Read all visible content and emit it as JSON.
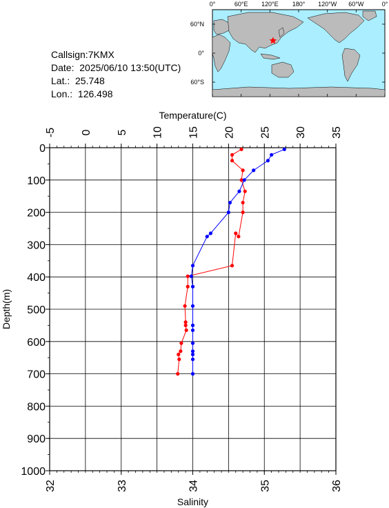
{
  "info": {
    "callsign": "Callsign:7KMX",
    "date": "Date:  2025/06/10 13:50(UTC)",
    "lat": "Lat.:  25.748",
    "lon": "Lon.:  126.498"
  },
  "map": {
    "top_labels": [
      "0°",
      "60°E",
      "120°E",
      "180°",
      "120°W",
      "60°W",
      "0°"
    ],
    "left_labels": [
      "60°N",
      "0°",
      "60°S"
    ],
    "station_lon": 126.498,
    "station_lat": 25.748,
    "ocean_color": "#aaeeff",
    "land_color": "#bbbbbb",
    "marker_color": "#ff0000"
  },
  "chart_data": {
    "type": "line",
    "temperature_label": "Temperature(C)",
    "salinity_label": "Salinity",
    "depth_label": "Depth(m)",
    "temperature_range": [
      -5,
      35
    ],
    "salinity_range": [
      32,
      36
    ],
    "depth_range": [
      0,
      1000
    ],
    "temperature_ticks": [
      "-5",
      "0",
      "5",
      "10",
      "15",
      "20",
      "25",
      "30",
      "35"
    ],
    "salinity_ticks": [
      "32",
      "33",
      "34",
      "35",
      "36"
    ],
    "depth_ticks": [
      "0",
      "100",
      "200",
      "300",
      "400",
      "500",
      "600",
      "700",
      "800",
      "900",
      "1000"
    ],
    "grid": true,
    "series": [
      {
        "quantity": "temperature",
        "color": "#ff0000",
        "points": [
          [
            21.8,
            5
          ],
          [
            20.5,
            22
          ],
          [
            20.5,
            40
          ],
          [
            22.0,
            70
          ],
          [
            21.8,
            100
          ],
          [
            22.3,
            135
          ],
          [
            22.0,
            170
          ],
          [
            22.0,
            200
          ],
          [
            21.4,
            275
          ],
          [
            21.0,
            265
          ],
          [
            20.5,
            365
          ],
          [
            14.3,
            398
          ],
          [
            14.3,
            430
          ],
          [
            13.9,
            490
          ],
          [
            14.0,
            540
          ],
          [
            14.0,
            550
          ],
          [
            14.1,
            565
          ],
          [
            13.4,
            605
          ],
          [
            13.3,
            630
          ],
          [
            13.0,
            640
          ],
          [
            13.1,
            655
          ],
          [
            12.9,
            700
          ]
        ]
      },
      {
        "quantity": "salinity",
        "color": "#0000ff",
        "points": [
          [
            35.28,
            5
          ],
          [
            35.1,
            22
          ],
          [
            35.05,
            40
          ],
          [
            34.85,
            70
          ],
          [
            34.72,
            100
          ],
          [
            34.65,
            135
          ],
          [
            34.52,
            170
          ],
          [
            34.5,
            200
          ],
          [
            34.25,
            265
          ],
          [
            34.2,
            275
          ],
          [
            34.0,
            365
          ],
          [
            33.98,
            398
          ],
          [
            34.0,
            430
          ],
          [
            34.0,
            490
          ],
          [
            34.0,
            550
          ],
          [
            34.0,
            565
          ],
          [
            34.0,
            605
          ],
          [
            34.0,
            630
          ],
          [
            34.0,
            640
          ],
          [
            34.0,
            655
          ],
          [
            34.0,
            700
          ]
        ]
      }
    ]
  }
}
